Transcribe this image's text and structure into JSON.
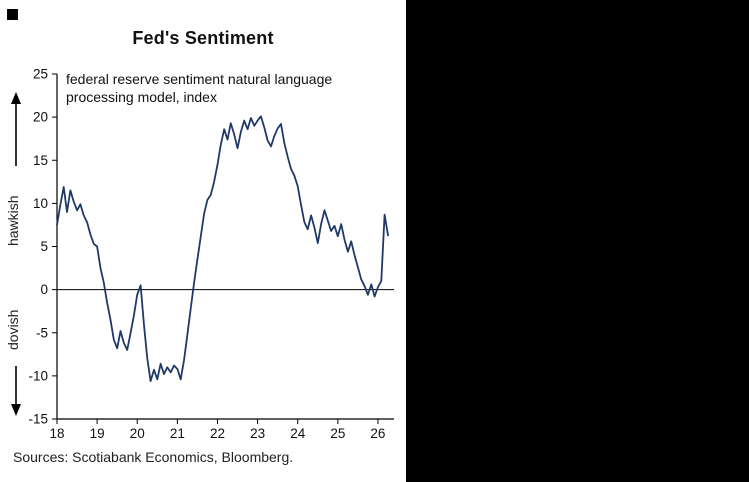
{
  "page": {
    "title": "Fed's Sentiment"
  },
  "chart_data": {
    "type": "line",
    "title": "Fed's Sentiment",
    "subtitle": "federal reserve sentiment natural language processing model, index",
    "axis_annotations": {
      "upper": "hawkish",
      "lower": "dovish"
    },
    "ylim": [
      -15,
      25
    ],
    "yticks": [
      25,
      20,
      15,
      10,
      5,
      0,
      -5,
      -10,
      -15
    ],
    "xlim": [
      2018,
      2026.4
    ],
    "xticks": [
      2018,
      2019,
      2020,
      2021,
      2022,
      2023,
      2024,
      2025,
      2026
    ],
    "xtick_labels": [
      "18",
      "19",
      "20",
      "21",
      "22",
      "23",
      "24",
      "25",
      "26"
    ],
    "grid": false,
    "zero_line": true,
    "legend": "none",
    "line_color": "#1f3a68",
    "axis_color": "#000000",
    "series": [
      {
        "name": "Federal Reserve sentiment NLP model index",
        "x_start": 2018.0,
        "x_step": 0.0833333,
        "values": [
          7.5,
          9.8,
          11.9,
          9.0,
          11.5,
          10.2,
          9.2,
          9.9,
          8.6,
          7.8,
          6.4,
          5.3,
          5.0,
          2.5,
          0.8,
          -1.5,
          -3.5,
          -5.8,
          -6.8,
          -4.8,
          -6.2,
          -7.0,
          -5.0,
          -3.0,
          -0.6,
          0.5,
          -4.0,
          -8.0,
          -10.6,
          -9.3,
          -10.4,
          -8.6,
          -9.8,
          -9.0,
          -9.6,
          -8.8,
          -9.2,
          -10.4,
          -8.2,
          -5.2,
          -2.2,
          0.8,
          3.5,
          6.2,
          8.8,
          10.4,
          11.0,
          12.5,
          14.5,
          16.8,
          18.6,
          17.4,
          19.3,
          18.0,
          16.4,
          18.3,
          19.6,
          18.6,
          19.9,
          19.0,
          19.6,
          20.1,
          18.8,
          17.3,
          16.6,
          17.8,
          18.7,
          19.2,
          17.0,
          15.4,
          14.0,
          13.2,
          12.0,
          9.8,
          7.8,
          7.0,
          8.6,
          7.2,
          5.4,
          7.6,
          9.2,
          8.0,
          6.8,
          7.4,
          6.2,
          7.6,
          5.8,
          4.4,
          5.6,
          4.0,
          2.6,
          1.2,
          0.4,
          -0.6,
          0.6,
          -0.8,
          0.3,
          1.0,
          8.7,
          6.3
        ]
      }
    ],
    "source": "Sources: Scotiabank Economics, Bloomberg."
  }
}
